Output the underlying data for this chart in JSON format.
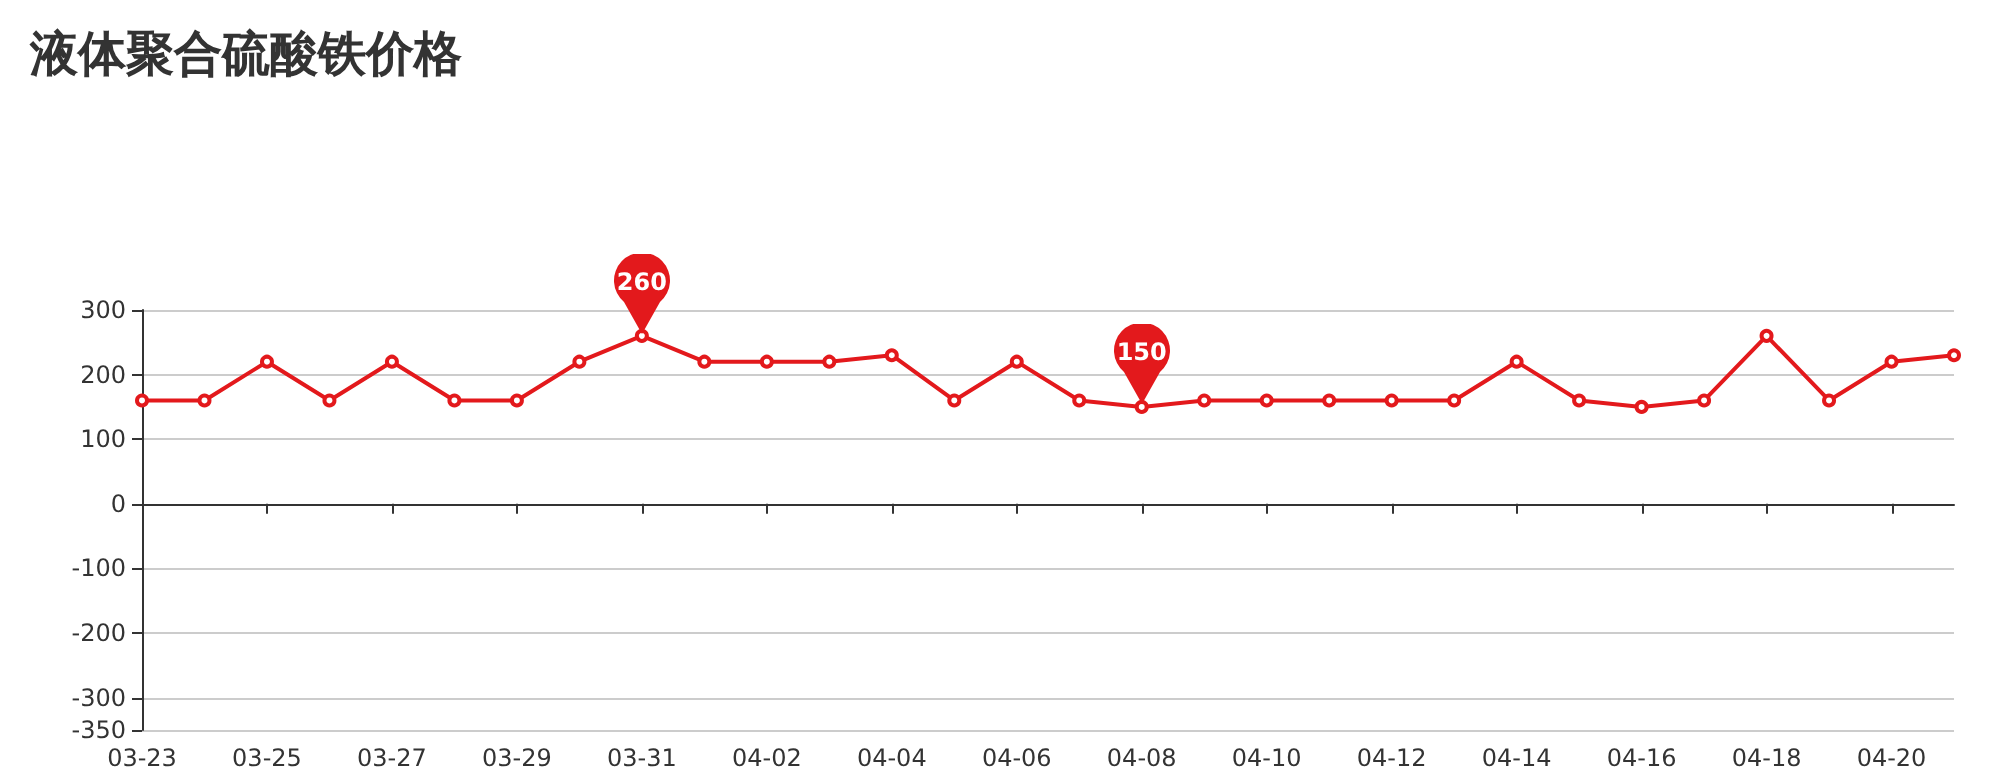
{
  "chart_data": {
    "type": "line",
    "title": "液体聚合硫酸铁价格",
    "categories": [
      "03-23",
      null,
      "03-25",
      null,
      "03-27",
      null,
      "03-29",
      null,
      "03-31",
      null,
      "04-02",
      null,
      "04-04",
      null,
      "04-06",
      null,
      "04-08",
      null,
      "04-10",
      null,
      "04-12",
      null,
      "04-14",
      null,
      "04-16",
      null,
      "04-18",
      null,
      "04-20",
      null
    ],
    "series": [
      {
        "color": "#e3191c",
        "values": [
          160,
          160,
          220,
          160,
          220,
          160,
          160,
          220,
          260,
          220,
          220,
          220,
          230,
          160,
          220,
          160,
          150,
          160,
          160,
          160,
          160,
          160,
          220,
          160,
          150,
          160,
          260,
          160,
          220,
          230
        ]
      }
    ],
    "annotations": [
      {
        "text": "260",
        "x": "03-31",
        "y": 260
      },
      {
        "text": "150",
        "x": "04-08",
        "y": 150
      }
    ],
    "ylim": [
      -350,
      300
    ],
    "yticks": [
      300,
      200,
      100,
      0,
      -100,
      -200,
      -300,
      -350
    ],
    "grid": "y",
    "marker": "circle",
    "line_style": "solid"
  }
}
